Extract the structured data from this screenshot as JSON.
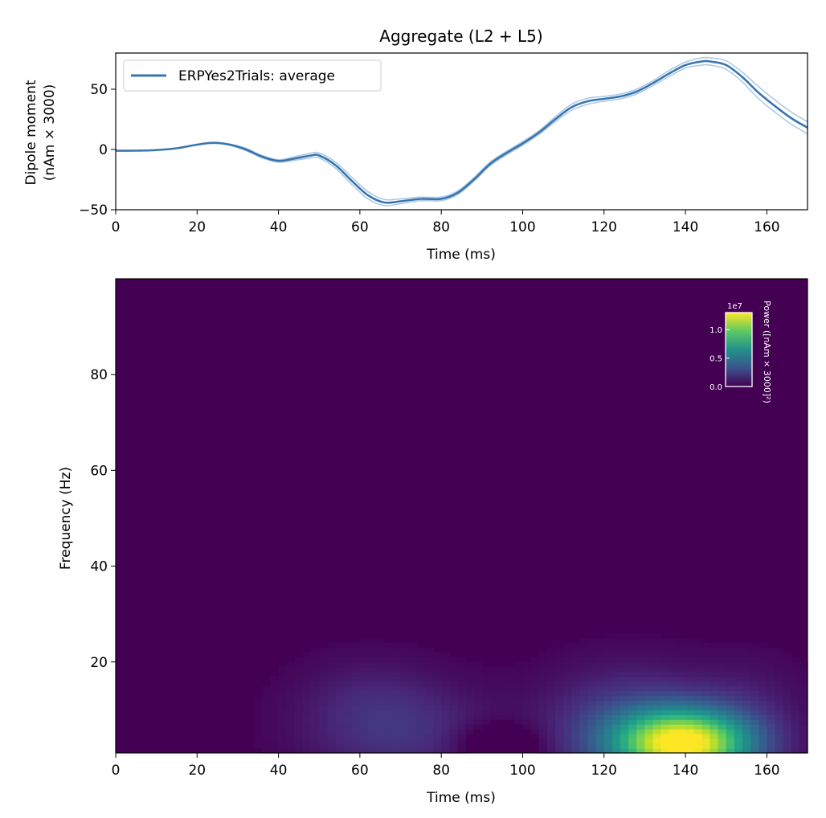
{
  "chart_data": [
    {
      "type": "line",
      "title": "Aggregate (L2 + L5)",
      "xlabel": "Time (ms)",
      "ylabel_line1": "Dipole moment",
      "ylabel_line2": "(nAm × 3000)",
      "xlim": [
        0,
        170
      ],
      "ylim": [
        -50,
        80
      ],
      "xticks": [
        0,
        20,
        40,
        60,
        80,
        100,
        120,
        140,
        160
      ],
      "yticks": [
        -50,
        0,
        50
      ],
      "ytick_labels": [
        "−50",
        "0",
        "50"
      ],
      "legend": {
        "position": "top-left",
        "entries": [
          "ERPYes2Trials: average"
        ]
      },
      "line_color": "#3a75b0",
      "band_color": "#a9c8e3",
      "series": [
        {
          "name": "ERPYes2Trials: average",
          "x": [
            0,
            5,
            10,
            15,
            20,
            24,
            28,
            32,
            36,
            40,
            44,
            48,
            50,
            54,
            58,
            62,
            66,
            70,
            75,
            80,
            84,
            88,
            92,
            96,
            100,
            104,
            108,
            112,
            116,
            120,
            124,
            128,
            132,
            136,
            140,
            144,
            146,
            150,
            154,
            158,
            162,
            166,
            170
          ],
          "y": [
            -1,
            -1,
            -0.5,
            1,
            4,
            5.5,
            4,
            0,
            -6,
            -9.5,
            -7.5,
            -5,
            -5,
            -13,
            -26,
            -38,
            -44,
            -43,
            -41,
            -41,
            -36,
            -25,
            -12,
            -3,
            5,
            14,
            25,
            35,
            40,
            42,
            44,
            48,
            55,
            63,
            70,
            73,
            73,
            70,
            60,
            47,
            36,
            26,
            18
          ]
        }
      ],
      "band_halfwidth": [
        0,
        0,
        0,
        0,
        0,
        0.5,
        0.5,
        1,
        1,
        1,
        1.5,
        2,
        2,
        2.5,
        3,
        3,
        2.5,
        2,
        1.5,
        1.5,
        1.5,
        1.5,
        1.5,
        1.5,
        1.5,
        1.5,
        2,
        2.5,
        2.5,
        2,
        2,
        2,
        2,
        2.5,
        2.5,
        3,
        3,
        3.5,
        4,
        5,
        5,
        5,
        5
      ]
    },
    {
      "type": "heatmap",
      "xlabel": "Time (ms)",
      "ylabel": "Frequency (Hz)",
      "xlim": [
        0,
        170
      ],
      "ylim": [
        1,
        100
      ],
      "xticks": [
        0,
        20,
        40,
        60,
        80,
        100,
        120,
        140,
        160
      ],
      "yticks": [
        20,
        40,
        60,
        80
      ],
      "colormap": "viridis",
      "colorbar": {
        "label": "Power ([nAm × 3000]²)",
        "exponent_label": "1e7",
        "tick_labels": [
          "0.0",
          "0.5",
          "1.0"
        ],
        "ticks": [
          0,
          0.5,
          1.0
        ],
        "range": [
          0,
          1.3
        ]
      },
      "power_components": [
        {
          "time_ms": 140,
          "freq_hz": 3,
          "peak": 1.28,
          "time_width_ms": 12,
          "freq_width_hz": 5
        },
        {
          "time_ms": 126,
          "freq_hz": 7,
          "peak": 0.25,
          "time_width_ms": 14,
          "freq_width_hz": 8
        },
        {
          "time_ms": 70,
          "freq_hz": 5,
          "peak": 0.18,
          "time_width_ms": 16,
          "freq_width_hz": 7
        },
        {
          "time_ms": 62,
          "freq_hz": 13,
          "peak": 0.08,
          "time_width_ms": 12,
          "freq_width_hz": 6
        },
        {
          "time_ms": 156,
          "freq_hz": 13,
          "peak": 0.07,
          "time_width_ms": 10,
          "freq_width_hz": 6
        },
        {
          "time_ms": 94,
          "freq_hz": 3,
          "peak": -0.2,
          "time_width_ms": 7,
          "freq_width_hz": 3
        }
      ]
    }
  ]
}
